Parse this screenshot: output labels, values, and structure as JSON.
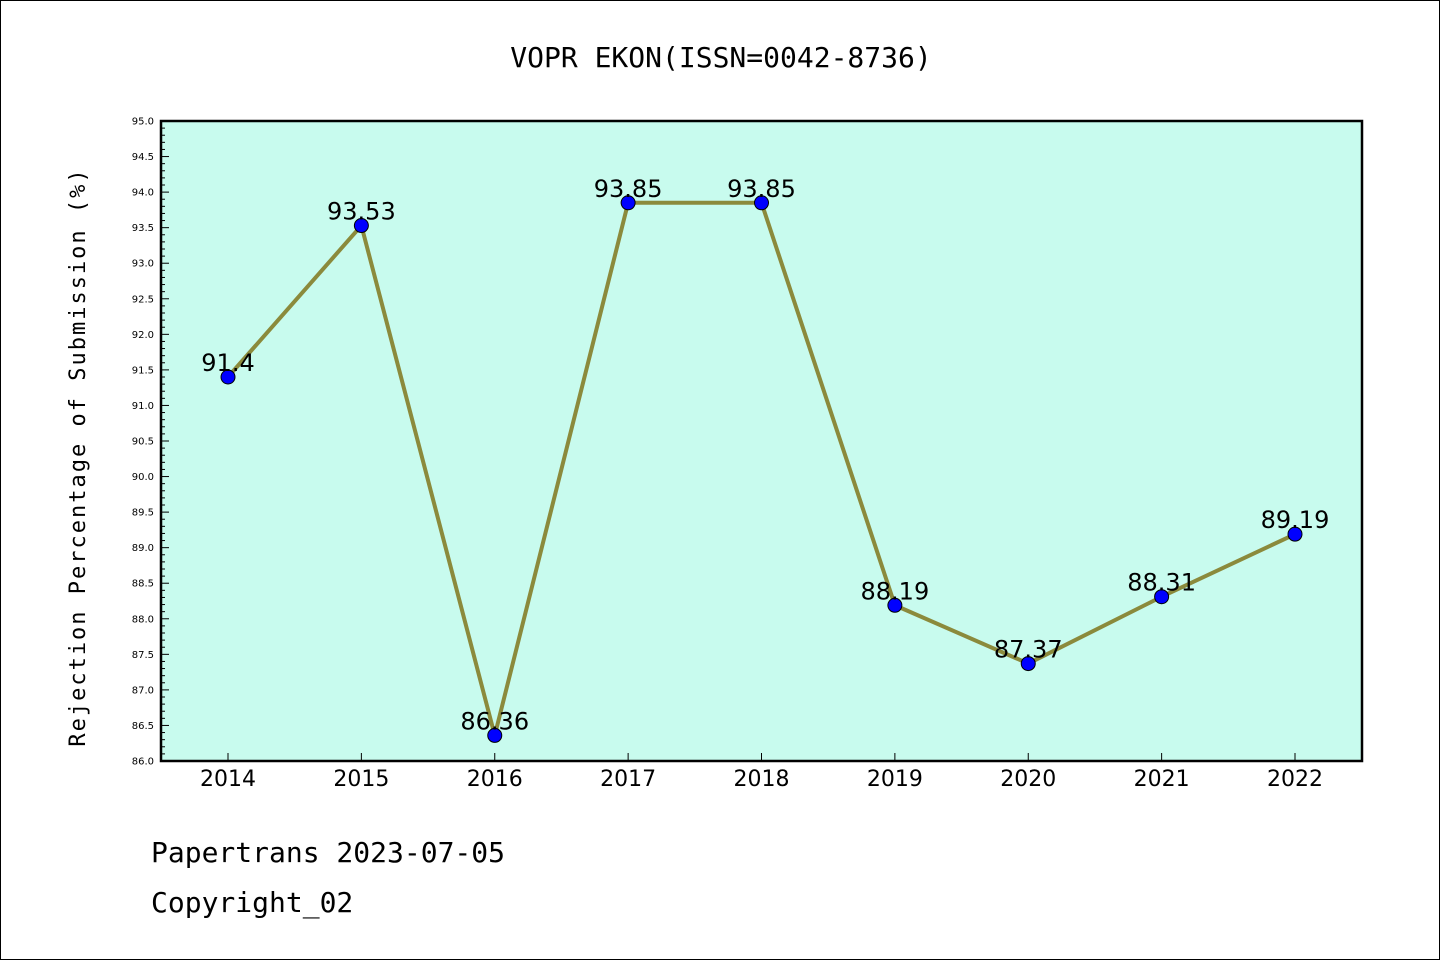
{
  "chart_data": {
    "type": "line",
    "title": "VOPR EKON(ISSN=0042-8736)",
    "ylabel": "Rejection Percentage of Submission (%)",
    "xlabel": "",
    "categories": [
      "2014",
      "2015",
      "2016",
      "2017",
      "2018",
      "2019",
      "2020",
      "2021",
      "2022"
    ],
    "values": [
      91.4,
      93.53,
      86.36,
      93.85,
      93.85,
      88.19,
      87.37,
      88.31,
      89.19
    ],
    "data_labels": [
      "91.4",
      "93.53",
      "86.36",
      "93.85",
      "93.85",
      "88.19",
      "87.37",
      "88.31",
      "89.19"
    ],
    "ylim": [
      86.0,
      95.0
    ],
    "yticks": [
      "86.0",
      "86.5",
      "87.0",
      "87.5",
      "88.0",
      "88.5",
      "89.0",
      "89.5",
      "90.0",
      "90.5",
      "91.0",
      "91.5",
      "92.0",
      "92.5",
      "93.0",
      "93.5",
      "94.0",
      "94.5",
      "95.0"
    ],
    "grid": false,
    "colors": {
      "plot_background": "#c8fbee",
      "line": "#8b8a3c",
      "marker": "#0000ff"
    }
  },
  "footer": {
    "line1": "Papertrans 2023-07-05",
    "line2": "Copyright_02"
  }
}
